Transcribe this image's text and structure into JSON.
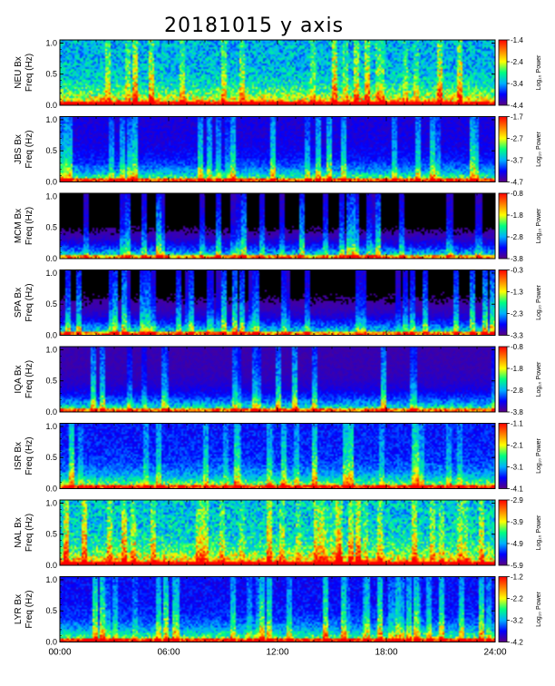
{
  "title": "20181015 y axis",
  "side_note": "",
  "colors": {
    "colorbar_stops": [
      "#5a0080",
      "#0000ff",
      "#00b0ff",
      "#00ff80",
      "#ffff00",
      "#ff8000",
      "#ff0000"
    ],
    "background_dark": "#000000",
    "power_red": "#ff0000"
  },
  "chart_data": [
    {
      "type": "heatmap",
      "station": "NEU",
      "component": "Bx",
      "ylabel_line1": "NEU Bx",
      "ylabel_line2": "Freq (Hz)",
      "ylim": [
        0,
        1.05
      ],
      "yticks": [
        "1.0",
        "0.5",
        "0.0"
      ],
      "clabel": "Log₁₀ Power",
      "cticks": [
        "-1.4",
        "-2.4",
        "-3.4",
        "-4.4"
      ],
      "crange": [
        -4.4,
        -1.4
      ],
      "background_level": 0.35
    },
    {
      "type": "heatmap",
      "station": "JBS",
      "component": "Bx",
      "ylabel_line1": "JBS Bx",
      "ylabel_line2": "Freq (Hz)",
      "ylim": [
        0,
        1.05
      ],
      "yticks": [
        "1.0",
        "0.5",
        "0.0"
      ],
      "clabel": "Log₁₀ Power",
      "cticks": [
        "-1.7",
        "-2.7",
        "-3.7",
        "-4.7"
      ],
      "crange": [
        -4.7,
        -1.7
      ],
      "background_level": 0.12
    },
    {
      "type": "heatmap",
      "station": "MCM",
      "component": "Bx",
      "ylabel_line1": "MCM Bx",
      "ylabel_line2": "Freq (Hz)",
      "ylim": [
        0,
        1.05
      ],
      "yticks": [
        "1.0",
        "0.5",
        "0.0"
      ],
      "clabel": "Log₁₀ Power",
      "cticks": [
        "-0.8",
        "-1.8",
        "-2.8",
        "-3.8"
      ],
      "crange": [
        -3.8,
        -0.8
      ],
      "background_level": 0.0
    },
    {
      "type": "heatmap",
      "station": "SPA",
      "component": "Bx",
      "ylabel_line1": "SPA Bx",
      "ylabel_line2": "Freq (Hz)",
      "ylim": [
        0,
        1.05
      ],
      "yticks": [
        "1.0",
        "0.5",
        "0.0"
      ],
      "clabel": "Log₁₀ Power",
      "cticks": [
        "-0.3",
        "-1.3",
        "-2.3",
        "-3.3"
      ],
      "crange": [
        -3.3,
        -0.3
      ],
      "background_level": 0.02
    },
    {
      "type": "heatmap",
      "station": "IQA",
      "component": "Bx",
      "ylabel_line1": "IQA Bx",
      "ylabel_line2": "Freq (Hz)",
      "ylim": [
        0,
        1.05
      ],
      "yticks": [
        "1.0",
        "0.5",
        "0.0"
      ],
      "clabel": "Log₁₀ Power",
      "cticks": [
        "-0.8",
        "-1.8",
        "-2.8",
        "-3.8"
      ],
      "crange": [
        -3.8,
        -0.8
      ],
      "background_level": 0.06
    },
    {
      "type": "heatmap",
      "station": "ISR",
      "component": "Bx",
      "ylabel_line1": "ISR Bx",
      "ylabel_line2": "Freq (Hz)",
      "ylim": [
        0,
        1.05
      ],
      "yticks": [
        "1.0",
        "0.5",
        "0.0"
      ],
      "clabel": "Log₁₀ Power",
      "cticks": [
        "-1.1",
        "-2.1",
        "-3.1",
        "-4.1"
      ],
      "crange": [
        -4.1,
        -1.1
      ],
      "background_level": 0.18
    },
    {
      "type": "heatmap",
      "station": "NAL",
      "component": "Bx",
      "ylabel_line1": "NAL Bx",
      "ylabel_line2": "Freq (Hz)",
      "ylim": [
        0,
        1.05
      ],
      "yticks": [
        "1.0",
        "0.5",
        "0.0"
      ],
      "clabel": "Log₁₀ Power",
      "cticks": [
        "-2.9",
        "-3.9",
        "-4.9",
        "-5.9"
      ],
      "crange": [
        -5.9,
        -2.9
      ],
      "background_level": 0.38
    },
    {
      "type": "heatmap",
      "station": "LYR",
      "component": "Bx",
      "ylabel_line1": "LYR Bx",
      "ylabel_line2": "Freq (Hz)",
      "ylim": [
        0,
        1.05
      ],
      "yticks": [
        "1.0",
        "0.5",
        "0.0"
      ],
      "clabel": "Log₁₀ Power",
      "cticks": [
        "-1.2",
        "-2.2",
        "-3.2",
        "-4.2"
      ],
      "crange": [
        -4.2,
        -1.2
      ],
      "background_level": 0.16
    }
  ],
  "x_axis": {
    "type": "time",
    "xlim": [
      "00:00",
      "24:00"
    ],
    "ticks": [
      "00:00",
      "06:00",
      "12:00",
      "18:00",
      "24:00"
    ]
  }
}
